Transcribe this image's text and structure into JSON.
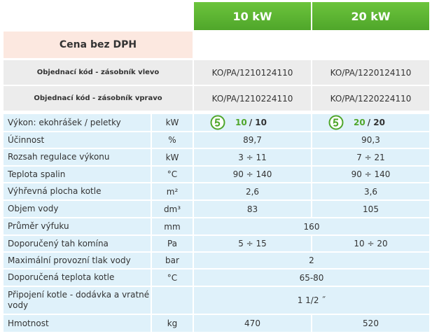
{
  "header": {
    "columns": [
      "10 kW",
      "20 kW"
    ]
  },
  "price_label": "Cena bez DPH",
  "order_codes": [
    {
      "label": "Objednací kód - zásobník vlevo",
      "values": [
        "KO/PA/1210124110",
        "KO/PA/1220124110"
      ]
    },
    {
      "label": "Objednací kód - zásobník vpravo",
      "values": [
        "KO/PA/1210224110",
        "KO/PA/1220224110"
      ]
    }
  ],
  "power_row": {
    "label": "Výkon: ekohrášek / peletky",
    "unit": "kW",
    "values": [
      {
        "coal": "10",
        "pellet": "/ 10"
      },
      {
        "coal": "20",
        "pellet": "/ 20"
      }
    ]
  },
  "rows": [
    {
      "label": "Účinnost",
      "unit": "%",
      "values": [
        "89,7",
        "90,3"
      ]
    },
    {
      "label": "Rozsah regulace výkonu",
      "unit": "kW",
      "values": [
        "3 ÷ 11",
        "7 ÷ 21"
      ]
    },
    {
      "label": "Teplota spalin",
      "unit": "°C",
      "values": [
        "90 ÷ 140",
        "90 ÷ 140"
      ]
    },
    {
      "label": "Výhřevná plocha kotle",
      "unit": "m²",
      "values": [
        "2,6",
        "3,6"
      ]
    },
    {
      "label": "Objem vody",
      "unit": "dm³",
      "values": [
        "83",
        "105"
      ]
    },
    {
      "label": "Průměr výfuku",
      "unit": "mm",
      "values": [
        "160"
      ]
    },
    {
      "label": "Doporučený tah komína",
      "unit": "Pa",
      "values": [
        "5 ÷ 15",
        "10 ÷ 20"
      ]
    },
    {
      "label": "Maximální provozní tlak vody",
      "unit": "bar",
      "values": [
        "2"
      ]
    },
    {
      "label": "Doporučená teplota kotle",
      "unit": "°C",
      "values": [
        "65-80"
      ]
    },
    {
      "label": "Připojení kotle - dodávka a vratné vody",
      "unit": "",
      "values": [
        "1 1/2 ˝"
      ]
    },
    {
      "label": "Hmotnost",
      "unit": "kg",
      "values": [
        "470",
        "520"
      ]
    }
  ]
}
